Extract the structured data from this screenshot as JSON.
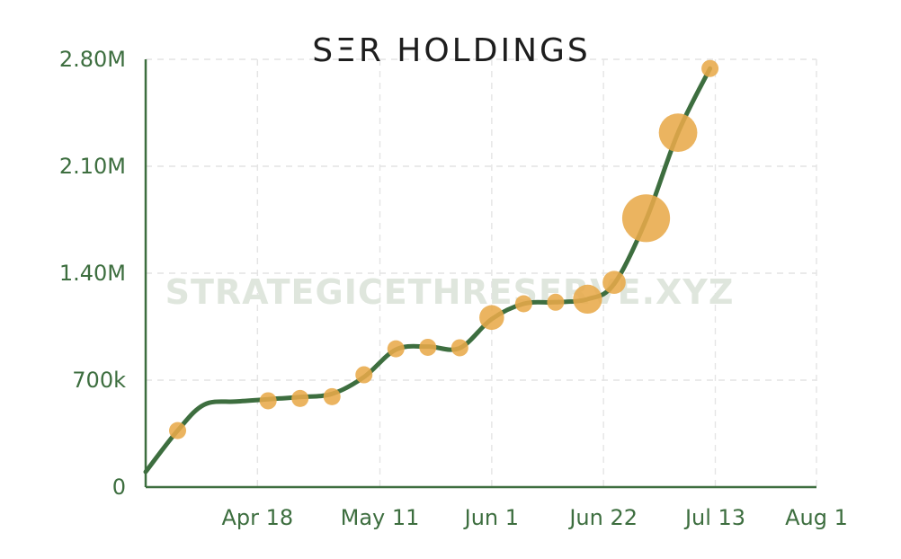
{
  "chart_data": {
    "type": "line",
    "title": "SΞR HOLDINGS",
    "watermark": "STRATEGICETHRESERVE.XYZ",
    "xlabel": "",
    "ylabel": "",
    "x_ticks": [
      "Apr 18",
      "May 11",
      "Jun 1",
      "Jun 22",
      "Jul 13",
      "Aug 1"
    ],
    "x_tick_days": [
      18,
      41,
      62,
      83,
      104,
      123
    ],
    "y_ticks": [
      "0",
      "700k",
      "1.40M",
      "2.10M",
      "2.80M"
    ],
    "y_tick_values": [
      0,
      700000,
      1400000,
      2100000,
      2800000
    ],
    "ylim": [
      0,
      2800000
    ],
    "xlim_days": [
      -3,
      123
    ],
    "grid": true,
    "colors": {
      "line": "#3d6e3f",
      "bubble": "#e8aa4a",
      "axis": "#3d6e3f",
      "title": "#1d1d1d"
    },
    "series": [
      {
        "name": "holdings",
        "points": [
          {
            "day": -3,
            "value": 100000
          },
          {
            "day": 3,
            "value": 370000
          },
          {
            "day": 8,
            "value": 540000
          },
          {
            "day": 14,
            "value": 560000
          },
          {
            "day": 20,
            "value": 575000
          },
          {
            "day": 26,
            "value": 590000
          },
          {
            "day": 32,
            "value": 610000
          },
          {
            "day": 38,
            "value": 720000
          },
          {
            "day": 44,
            "value": 900000
          },
          {
            "day": 50,
            "value": 920000
          },
          {
            "day": 56,
            "value": 910000
          },
          {
            "day": 62,
            "value": 1100000
          },
          {
            "day": 68,
            "value": 1200000
          },
          {
            "day": 74,
            "value": 1210000
          },
          {
            "day": 80,
            "value": 1230000
          },
          {
            "day": 85,
            "value": 1330000
          },
          {
            "day": 91,
            "value": 1750000
          },
          {
            "day": 97,
            "value": 2320000
          },
          {
            "day": 103,
            "value": 2740000
          }
        ]
      }
    ],
    "bubbles": [
      {
        "day": 3,
        "value": 370000,
        "size": 1.0
      },
      {
        "day": 20,
        "value": 565000,
        "size": 1.0
      },
      {
        "day": 26,
        "value": 580000,
        "size": 1.0
      },
      {
        "day": 32,
        "value": 592000,
        "size": 1.0
      },
      {
        "day": 38,
        "value": 735000,
        "size": 1.0
      },
      {
        "day": 44,
        "value": 905000,
        "size": 1.0
      },
      {
        "day": 50,
        "value": 915000,
        "size": 1.0
      },
      {
        "day": 56,
        "value": 912000,
        "size": 1.0
      },
      {
        "day": 62,
        "value": 1110000,
        "size": 1.45
      },
      {
        "day": 68,
        "value": 1200000,
        "size": 1.0
      },
      {
        "day": 74,
        "value": 1210000,
        "size": 1.0
      },
      {
        "day": 80,
        "value": 1230000,
        "size": 1.7
      },
      {
        "day": 85,
        "value": 1340000,
        "size": 1.35
      },
      {
        "day": 91,
        "value": 1760000,
        "size": 2.8
      },
      {
        "day": 97,
        "value": 2320000,
        "size": 2.25
      },
      {
        "day": 103,
        "value": 2740000,
        "size": 1.0
      }
    ]
  }
}
